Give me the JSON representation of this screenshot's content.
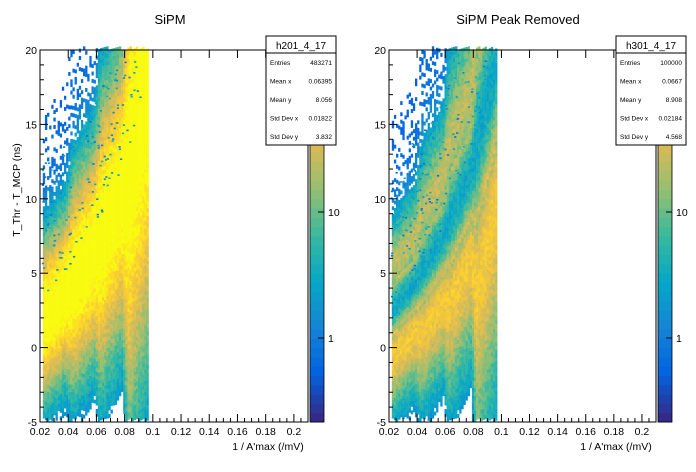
{
  "chart_data": [
    {
      "type": "heatmap",
      "title": "SiPM",
      "xlabel": "1 / A'max (/mV)",
      "ylabel": "T_Thr - T_MCP (ns)",
      "xlim": [
        0.02,
        0.21
      ],
      "ylim": [
        -5,
        20
      ],
      "x_ticks": [
        "0.02",
        "0.04",
        "0.06",
        "0.08",
        "0.1",
        "0.12",
        "0.14",
        "0.16",
        "0.18",
        "0.2"
      ],
      "y_ticks": [
        "-5",
        "0",
        "5",
        "10",
        "15",
        "20"
      ],
      "z_scale": "log",
      "z_ticks": [
        "1",
        "10"
      ],
      "stats": {
        "name": "h201_4_17",
        "rows": [
          {
            "key": "Entries",
            "value": "483271"
          },
          {
            "key": "Mean x",
            "value": "0.06395"
          },
          {
            "key": "Mean y",
            "value": "8.056"
          },
          {
            "key": "Std Dev x",
            "value": "0.01822"
          },
          {
            "key": "Std Dev y",
            "value": "3.832"
          }
        ]
      },
      "band": {
        "center_curve": [
          [
            0.022,
            1.8
          ],
          [
            0.04,
            3.8
          ],
          [
            0.06,
            6.8
          ],
          [
            0.08,
            11.0
          ],
          [
            0.095,
            17.0
          ]
        ],
        "x_range": [
          0.022,
          0.097
        ],
        "peak_removed": false
      }
    },
    {
      "type": "heatmap",
      "title": "SiPM Peak Removed",
      "xlabel": "1 / A'max (/mV)",
      "ylabel": "",
      "xlim": [
        0.02,
        0.21
      ],
      "ylim": [
        -5,
        20
      ],
      "x_ticks": [
        "0.02",
        "0.04",
        "0.06",
        "0.08",
        "0.1",
        "0.12",
        "0.14",
        "0.16",
        "0.18",
        "0.2"
      ],
      "y_ticks": [
        "-5",
        "0",
        "5",
        "10",
        "15",
        "20"
      ],
      "z_scale": "log",
      "z_ticks": [
        "1",
        "10"
      ],
      "stats": {
        "name": "h301_4_17",
        "rows": [
          {
            "key": "Entries",
            "value": "100000"
          },
          {
            "key": "Mean x",
            "value": "0.0667"
          },
          {
            "key": "Mean y",
            "value": "8.908"
          },
          {
            "key": "Std Dev x",
            "value": "0.02184"
          },
          {
            "key": "Std Dev y",
            "value": "4.568"
          }
        ]
      },
      "band": {
        "center_curve": [
          [
            0.022,
            1.8
          ],
          [
            0.04,
            3.8
          ],
          [
            0.06,
            6.8
          ],
          [
            0.08,
            11.0
          ],
          [
            0.095,
            17.0
          ]
        ],
        "x_range": [
          0.022,
          0.097
        ],
        "peak_removed": true
      }
    }
  ]
}
